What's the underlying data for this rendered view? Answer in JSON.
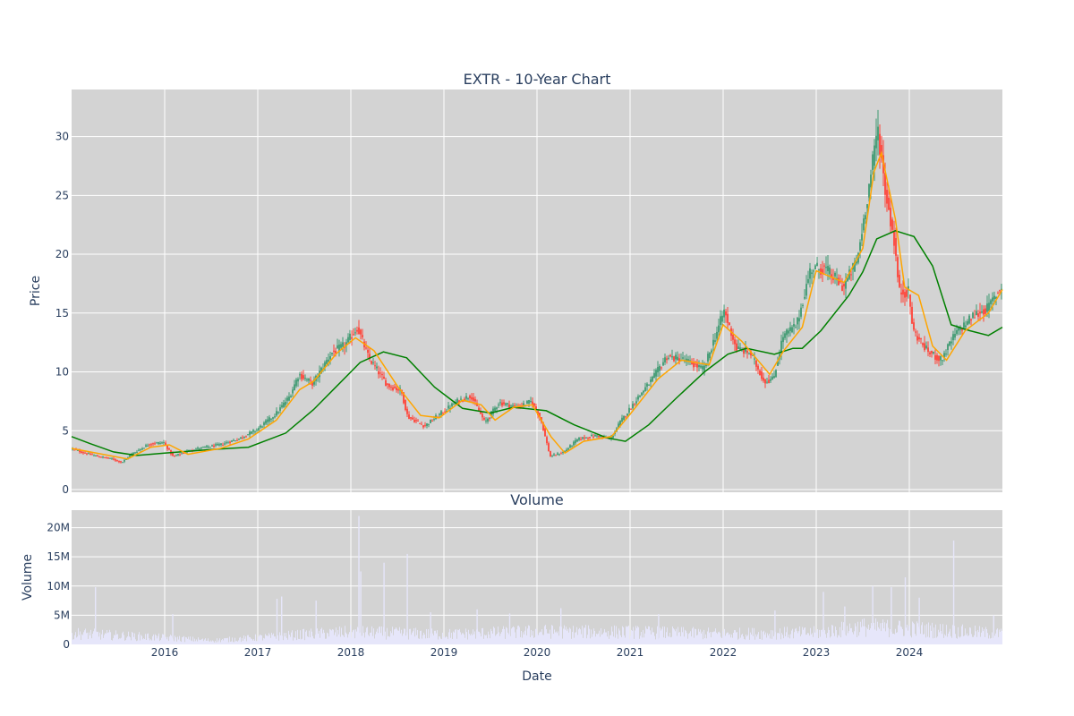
{
  "title": "EXTR - 10-Year Chart",
  "colors": {
    "plot_bg": "#d3d3d3",
    "grid": "#ffffff",
    "candle_up": "#3d9970",
    "candle_down": "#ff4136",
    "ma_short": "#ffa500",
    "ma_long": "#008000",
    "volume": "#e6e6fa",
    "text": "#2a3f5f"
  },
  "chart_data": [
    {
      "type": "candlestick",
      "title": "EXTR - 10-Year Chart",
      "ylabel": "Price",
      "ylim": [
        0,
        34
      ],
      "yticks": [
        0,
        5,
        10,
        15,
        20,
        25,
        30
      ],
      "xlim": [
        2015.0,
        2025.0
      ],
      "xticks": [
        2016,
        2017,
        2018,
        2019,
        2020,
        2021,
        2022,
        2023,
        2024
      ],
      "xtick_labels": [
        "2016",
        "2017",
        "2018",
        "2019",
        "2020",
        "2021",
        "2022",
        "2023",
        "2024"
      ],
      "grid": true,
      "price_path": [
        [
          2015.0,
          3.5
        ],
        [
          2015.15,
          3.1
        ],
        [
          2015.3,
          2.8
        ],
        [
          2015.45,
          2.6
        ],
        [
          2015.55,
          2.3
        ],
        [
          2015.65,
          3.0
        ],
        [
          2015.85,
          3.9
        ],
        [
          2016.0,
          4.0
        ],
        [
          2016.1,
          2.8
        ],
        [
          2016.3,
          3.4
        ],
        [
          2016.6,
          3.8
        ],
        [
          2016.8,
          4.3
        ],
        [
          2017.0,
          5.1
        ],
        [
          2017.2,
          6.4
        ],
        [
          2017.35,
          7.9
        ],
        [
          2017.45,
          9.8
        ],
        [
          2017.6,
          9.0
        ],
        [
          2017.8,
          11.6
        ],
        [
          2017.95,
          12.3
        ],
        [
          2018.08,
          13.8
        ],
        [
          2018.2,
          11.2
        ],
        [
          2018.4,
          8.9
        ],
        [
          2018.55,
          8.4
        ],
        [
          2018.62,
          6.2
        ],
        [
          2018.8,
          5.4
        ],
        [
          2018.95,
          6.3
        ],
        [
          2019.15,
          7.5
        ],
        [
          2019.3,
          8.0
        ],
        [
          2019.45,
          5.7
        ],
        [
          2019.6,
          7.4
        ],
        [
          2019.8,
          7.0
        ],
        [
          2019.95,
          7.5
        ],
        [
          2020.05,
          6.0
        ],
        [
          2020.15,
          2.8
        ],
        [
          2020.3,
          3.2
        ],
        [
          2020.45,
          4.3
        ],
        [
          2020.65,
          4.6
        ],
        [
          2020.8,
          4.3
        ],
        [
          2020.9,
          5.7
        ],
        [
          2021.1,
          7.9
        ],
        [
          2021.25,
          9.4
        ],
        [
          2021.4,
          11.3
        ],
        [
          2021.6,
          11.0
        ],
        [
          2021.8,
          10.2
        ],
        [
          2021.95,
          13.6
        ],
        [
          2022.02,
          15.2
        ],
        [
          2022.15,
          12.0
        ],
        [
          2022.3,
          11.6
        ],
        [
          2022.45,
          9.2
        ],
        [
          2022.55,
          9.4
        ],
        [
          2022.65,
          13.0
        ],
        [
          2022.8,
          14.0
        ],
        [
          2022.95,
          18.8
        ],
        [
          2023.1,
          18.8
        ],
        [
          2023.3,
          17.2
        ],
        [
          2023.45,
          19.5
        ],
        [
          2023.55,
          24.5
        ],
        [
          2023.62,
          28.0
        ],
        [
          2023.67,
          30.8
        ],
        [
          2023.75,
          25.5
        ],
        [
          2023.85,
          21.0
        ],
        [
          2023.9,
          16.8
        ],
        [
          2024.0,
          16.8
        ],
        [
          2024.05,
          13.5
        ],
        [
          2024.2,
          11.8
        ],
        [
          2024.35,
          11.0
        ],
        [
          2024.5,
          13.2
        ],
        [
          2024.7,
          14.8
        ],
        [
          2024.85,
          15.4
        ],
        [
          2025.0,
          17.3
        ]
      ],
      "ma_short": [
        [
          2015.0,
          3.5
        ],
        [
          2015.4,
          2.9
        ],
        [
          2015.6,
          2.6
        ],
        [
          2015.85,
          3.6
        ],
        [
          2016.05,
          3.8
        ],
        [
          2016.25,
          3.0
        ],
        [
          2016.6,
          3.5
        ],
        [
          2016.9,
          4.3
        ],
        [
          2017.2,
          5.9
        ],
        [
          2017.45,
          8.5
        ],
        [
          2017.6,
          9.2
        ],
        [
          2017.85,
          11.6
        ],
        [
          2018.05,
          12.9
        ],
        [
          2018.25,
          11.8
        ],
        [
          2018.5,
          8.8
        ],
        [
          2018.75,
          6.3
        ],
        [
          2018.95,
          6.1
        ],
        [
          2019.2,
          7.6
        ],
        [
          2019.4,
          7.2
        ],
        [
          2019.55,
          5.9
        ],
        [
          2019.75,
          7.0
        ],
        [
          2019.95,
          7.2
        ],
        [
          2020.15,
          4.5
        ],
        [
          2020.3,
          3.1
        ],
        [
          2020.5,
          4.1
        ],
        [
          2020.8,
          4.5
        ],
        [
          2021.0,
          6.4
        ],
        [
          2021.3,
          9.4
        ],
        [
          2021.55,
          11.0
        ],
        [
          2021.85,
          10.6
        ],
        [
          2022.0,
          14.0
        ],
        [
          2022.2,
          12.6
        ],
        [
          2022.5,
          9.8
        ],
        [
          2022.65,
          11.8
        ],
        [
          2022.85,
          13.8
        ],
        [
          2023.0,
          18.6
        ],
        [
          2023.3,
          17.6
        ],
        [
          2023.5,
          20.5
        ],
        [
          2023.62,
          27.0
        ],
        [
          2023.7,
          28.6
        ],
        [
          2023.85,
          23.0
        ],
        [
          2023.95,
          17.2
        ],
        [
          2024.1,
          16.5
        ],
        [
          2024.25,
          12.2
        ],
        [
          2024.4,
          11.0
        ],
        [
          2024.6,
          13.5
        ],
        [
          2024.85,
          15.0
        ],
        [
          2025.0,
          17.0
        ]
      ],
      "ma_long": [
        [
          2015.0,
          4.5
        ],
        [
          2015.2,
          3.9
        ],
        [
          2015.45,
          3.2
        ],
        [
          2015.7,
          2.9
        ],
        [
          2016.0,
          3.1
        ],
        [
          2016.5,
          3.4
        ],
        [
          2016.9,
          3.6
        ],
        [
          2017.3,
          4.8
        ],
        [
          2017.6,
          6.8
        ],
        [
          2017.85,
          8.8
        ],
        [
          2018.1,
          10.8
        ],
        [
          2018.35,
          11.7
        ],
        [
          2018.6,
          11.2
        ],
        [
          2018.9,
          8.7
        ],
        [
          2019.2,
          6.9
        ],
        [
          2019.5,
          6.5
        ],
        [
          2019.75,
          7.0
        ],
        [
          2020.1,
          6.7
        ],
        [
          2020.4,
          5.5
        ],
        [
          2020.75,
          4.4
        ],
        [
          2020.95,
          4.1
        ],
        [
          2021.2,
          5.5
        ],
        [
          2021.5,
          7.8
        ],
        [
          2021.8,
          10.0
        ],
        [
          2022.05,
          11.5
        ],
        [
          2022.25,
          12.0
        ],
        [
          2022.55,
          11.5
        ],
        [
          2022.75,
          12.0
        ],
        [
          2022.85,
          12.0
        ],
        [
          2023.05,
          13.5
        ],
        [
          2023.35,
          16.5
        ],
        [
          2023.5,
          18.5
        ],
        [
          2023.65,
          21.3
        ],
        [
          2023.85,
          22.0
        ],
        [
          2024.05,
          21.5
        ],
        [
          2024.25,
          19.0
        ],
        [
          2024.45,
          14.0
        ],
        [
          2024.65,
          13.5
        ],
        [
          2024.85,
          13.1
        ],
        [
          2025.0,
          13.8
        ]
      ]
    },
    {
      "type": "bar",
      "title": "Volume",
      "ylabel": "Volume",
      "xlabel": "Date",
      "ylim": [
        0,
        23000000
      ],
      "yticks": [
        0,
        5000000,
        10000000,
        15000000,
        20000000
      ],
      "ytick_labels": [
        "0",
        "5M",
        "10M",
        "15M",
        "20M"
      ],
      "xticks": [
        2016,
        2017,
        2018,
        2019,
        2020,
        2021,
        2022,
        2023,
        2024
      ],
      "xtick_labels": [
        "2016",
        "2017",
        "2018",
        "2019",
        "2020",
        "2021",
        "2022",
        "2023",
        "2024"
      ],
      "base_level": [
        [
          2015.0,
          2000000
        ],
        [
          2016.0,
          1200000
        ],
        [
          2016.5,
          700000
        ],
        [
          2017.0,
          1200000
        ],
        [
          2017.5,
          1800000
        ],
        [
          2018.0,
          2200000
        ],
        [
          2019.0,
          1800000
        ],
        [
          2020.0,
          2300000
        ],
        [
          2021.0,
          2200000
        ],
        [
          2022.0,
          1900000
        ],
        [
          2023.0,
          2100000
        ],
        [
          2023.5,
          3100000
        ],
        [
          2024.0,
          2800000
        ],
        [
          2025.0,
          1900000
        ]
      ],
      "spikes": [
        [
          2015.25,
          9800000
        ],
        [
          2016.08,
          5200000
        ],
        [
          2017.2,
          7800000
        ],
        [
          2017.25,
          8200000
        ],
        [
          2017.62,
          7500000
        ],
        [
          2018.08,
          22000000
        ],
        [
          2018.1,
          12500000
        ],
        [
          2018.35,
          14000000
        ],
        [
          2018.6,
          15500000
        ],
        [
          2018.85,
          5500000
        ],
        [
          2019.35,
          6000000
        ],
        [
          2019.7,
          5300000
        ],
        [
          2020.25,
          6200000
        ],
        [
          2021.3,
          5200000
        ],
        [
          2022.55,
          5800000
        ],
        [
          2023.07,
          9000000
        ],
        [
          2023.3,
          6500000
        ],
        [
          2023.6,
          10000000
        ],
        [
          2023.8,
          9800000
        ],
        [
          2023.95,
          11500000
        ],
        [
          2024.1,
          8000000
        ],
        [
          2024.47,
          17800000
        ],
        [
          2024.9,
          5000000
        ]
      ]
    }
  ]
}
